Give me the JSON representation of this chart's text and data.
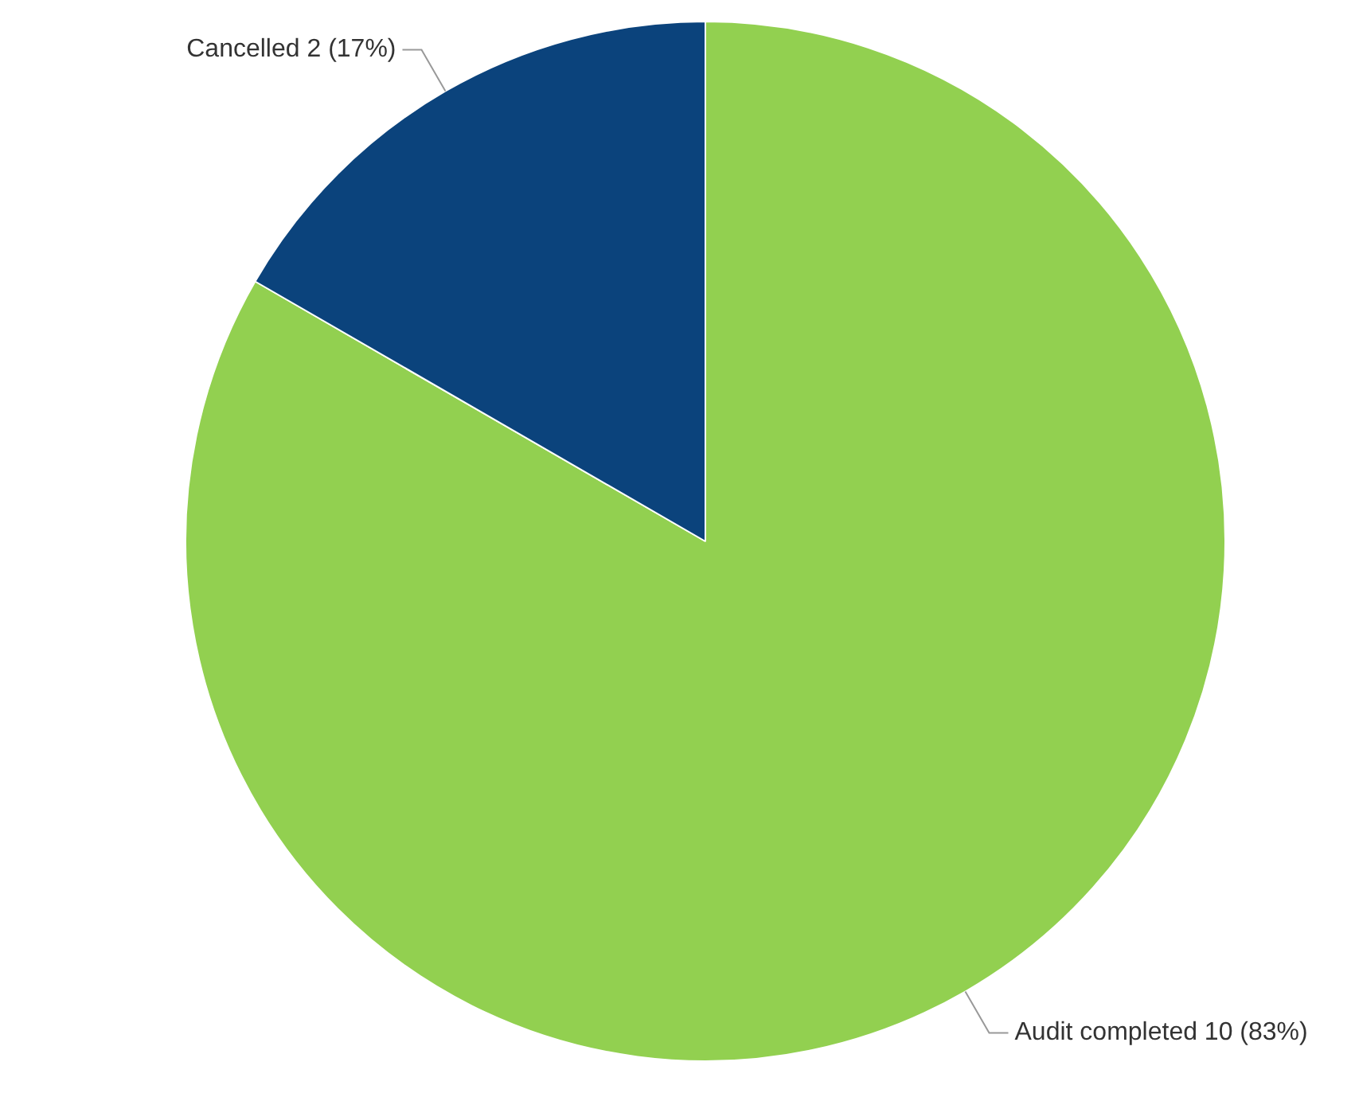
{
  "chart_data": {
    "type": "pie",
    "categories": [
      "Audit completed",
      "Cancelled"
    ],
    "values": [
      10,
      2
    ],
    "colors": [
      "#92d050",
      "#0b437c"
    ],
    "value_labels": [
      "10 (83%)",
      "2 (17%)"
    ],
    "legend": false
  }
}
